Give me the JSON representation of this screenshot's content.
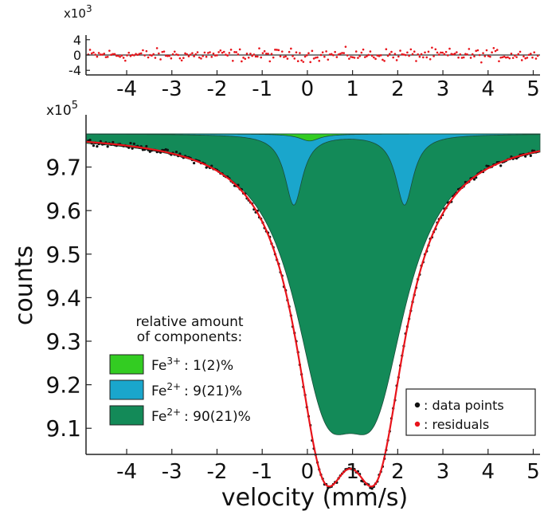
{
  "chart_data": [
    {
      "panel": "residual",
      "type": "scatter",
      "multiplier": "x10^3",
      "multiplier_base": "x10",
      "multiplier_exp": "3",
      "xlim": [
        -4.9,
        5.15
      ],
      "ylim": [
        -4,
        4
      ],
      "y_ticks": [
        "4",
        "0",
        "-4"
      ],
      "x_ticks": [
        "-4",
        "-3",
        "-2",
        "-1",
        "0",
        "1",
        "2",
        "3",
        "4",
        "5"
      ],
      "colors": {
        "points": "#e8141b",
        "zero_line": "#333333"
      },
      "residual_noise_amplitude": 1.6
    },
    {
      "panel": "spectrum",
      "type": "area",
      "xlabel": "velocity (mm/s)",
      "ylabel": "counts",
      "multiplier": "x10^5",
      "multiplier_base": "x10",
      "multiplier_exp": "5",
      "xlim": [
        -4.9,
        5.15
      ],
      "ylim": [
        9.04,
        9.82
      ],
      "x_ticks": [
        "-4",
        "-3",
        "-2",
        "-1",
        "0",
        "1",
        "2",
        "3",
        "4",
        "5"
      ],
      "y_ticks": [
        "9.7",
        "9.6",
        "9.5",
        "9.4",
        "9.3",
        "9.2",
        "9.1"
      ],
      "baseline": 9.776,
      "components": [
        {
          "name": "Fe3+",
          "label_base": "Fe",
          "label_sup": "3+",
          "amount": ": 1(2)%",
          "color": "#33cc22",
          "lines": [
            {
              "pos": 0.05,
              "depth": 0.016,
              "width": 0.55
            }
          ]
        },
        {
          "name": "Fe2+ (minor)",
          "label_base": "Fe",
          "label_sup": "2+",
          "amount": ": 9(21)%",
          "color": "#1aa6cc",
          "lines": [
            {
              "pos": -0.3,
              "depth": 0.162,
              "width": 0.48
            },
            {
              "pos": 2.15,
              "depth": 0.162,
              "width": 0.48
            }
          ]
        },
        {
          "name": "Fe2+ (major)",
          "label_base": "Fe",
          "label_sup": "2+",
          "amount": ": 90(21)%",
          "color": "#138a58",
          "lines": [
            {
              "pos": 0.4,
              "depth": 0.48,
              "width": 1.75
            },
            {
              "pos": 1.5,
              "depth": 0.48,
              "width": 1.75
            }
          ]
        }
      ],
      "spectrum_baseline": 9.78,
      "spectrum_lines": [
        {
          "pos": 0.35,
          "depth": 0.618,
          "width": 1.55
        },
        {
          "pos": 1.55,
          "depth": 0.618,
          "width": 1.55
        }
      ],
      "data_scatter": 0.006,
      "legend_components": {
        "title_line1": "relative amount",
        "title_line2": "of components:"
      },
      "legend_series": [
        {
          "name": "data points",
          "marker": "•",
          "label": ": data points",
          "color": "#111111"
        },
        {
          "name": "residuals",
          "marker": "•",
          "label": ": residuals",
          "color": "#e8141b"
        }
      ],
      "colors": {
        "fit": "#e8141b",
        "points": "#111111"
      }
    }
  ]
}
